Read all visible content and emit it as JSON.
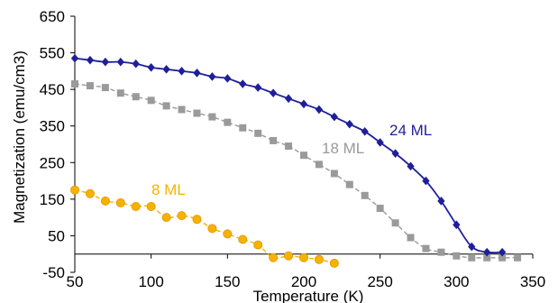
{
  "chart_data": {
    "type": "line",
    "title": "",
    "xlabel": "Temperature (K)",
    "ylabel": "Magnetization  (emu/cm3)",
    "xlim": [
      50,
      350
    ],
    "ylim": [
      -50,
      650
    ],
    "xticks": [
      50,
      100,
      150,
      200,
      250,
      300,
      350
    ],
    "yticks": [
      -50,
      50,
      150,
      250,
      350,
      450,
      550,
      650
    ],
    "xtick_labels": [
      "50",
      "100",
      "150",
      "200",
      "250",
      "300",
      "350"
    ],
    "ytick_labels": [
      "-50",
      "50",
      "150",
      "250",
      "350",
      "450",
      "550",
      "650"
    ],
    "grid": false,
    "legend": "none (inline series labels)",
    "series": [
      {
        "name": "24 ML",
        "color": "#1f1f9a",
        "marker": "diamond",
        "line": "solid",
        "x": [
          50,
          60,
          70,
          80,
          90,
          100,
          110,
          120,
          130,
          140,
          150,
          160,
          170,
          180,
          190,
          200,
          210,
          220,
          230,
          240,
          250,
          260,
          270,
          280,
          290,
          300,
          310,
          320,
          330
        ],
        "y": [
          535,
          530,
          525,
          525,
          520,
          510,
          505,
          500,
          495,
          485,
          480,
          465,
          455,
          440,
          425,
          410,
          395,
          375,
          355,
          335,
          305,
          275,
          240,
          200,
          145,
          80,
          20,
          5,
          5
        ]
      },
      {
        "name": "18 ML",
        "color": "#9a9a9a",
        "marker": "square",
        "line": "dashed",
        "x": [
          50,
          60,
          70,
          80,
          90,
          100,
          110,
          120,
          130,
          140,
          150,
          160,
          170,
          180,
          190,
          200,
          210,
          220,
          230,
          240,
          250,
          260,
          270,
          280,
          290,
          300,
          310,
          320,
          330,
          340
        ],
        "y": [
          465,
          460,
          455,
          440,
          430,
          420,
          405,
          395,
          385,
          375,
          360,
          345,
          330,
          310,
          295,
          270,
          245,
          220,
          190,
          160,
          125,
          85,
          45,
          15,
          5,
          -5,
          -10,
          -10,
          -10,
          -10
        ]
      },
      {
        "name": "8 ML",
        "color": "#f5b300",
        "marker": "circle",
        "line": "dashed",
        "x": [
          50,
          60,
          70,
          80,
          90,
          100,
          110,
          120,
          130,
          140,
          150,
          160,
          170,
          180,
          190,
          200,
          210,
          220
        ],
        "y": [
          175,
          165,
          145,
          140,
          130,
          130,
          100,
          105,
          95,
          70,
          55,
          40,
          25,
          -10,
          -5,
          -10,
          -15,
          -25
        ]
      }
    ]
  }
}
